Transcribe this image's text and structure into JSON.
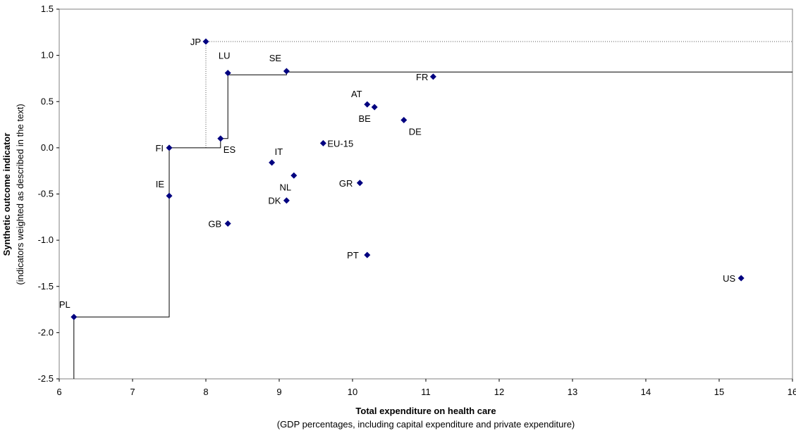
{
  "chart_data": {
    "type": "scatter",
    "xlabel": "Total expenditure on health care",
    "xlabel_sub": "(GDP percentages, including capital expenditure and private expenditure)",
    "ylabel": "Synthetic outcome indicator",
    "ylabel_sub": "(indicators weighted as described in the text)",
    "xlim": [
      6,
      16
    ],
    "ylim": [
      -2.5,
      1.5
    ],
    "x_ticks": [
      "6",
      "7",
      "8",
      "9",
      "10",
      "11",
      "12",
      "13",
      "14",
      "15",
      "16"
    ],
    "y_ticks": [
      "1.5",
      "1.0",
      "0.5",
      "0.0",
      "-0.5",
      "-1.0",
      "-1.5",
      "-2.0",
      "-2.5"
    ],
    "marker_color": "#000080",
    "points": [
      {
        "label": "PL",
        "x": 6.2,
        "y": -1.83
      },
      {
        "label": "IE",
        "x": 7.5,
        "y": -0.52
      },
      {
        "label": "FI",
        "x": 7.5,
        "y": 0.0
      },
      {
        "label": "JP",
        "x": 8.0,
        "y": 1.15
      },
      {
        "label": "ES",
        "x": 8.2,
        "y": 0.1
      },
      {
        "label": "LU",
        "x": 8.3,
        "y": 0.81
      },
      {
        "label": "GB",
        "x": 8.3,
        "y": -0.82
      },
      {
        "label": "IT",
        "x": 8.9,
        "y": -0.16
      },
      {
        "label": "SE",
        "x": 9.1,
        "y": 0.83
      },
      {
        "label": "DK",
        "x": 9.1,
        "y": -0.57
      },
      {
        "label": "NL",
        "x": 9.2,
        "y": -0.3
      },
      {
        "label": "EU-15",
        "x": 9.6,
        "y": 0.05
      },
      {
        "label": "GR",
        "x": 10.1,
        "y": -0.38
      },
      {
        "label": "AT",
        "x": 10.2,
        "y": 0.47
      },
      {
        "label": "PT",
        "x": 10.2,
        "y": -1.16
      },
      {
        "label": "BE",
        "x": 10.3,
        "y": 0.44
      },
      {
        "label": "DE",
        "x": 10.7,
        "y": 0.3
      },
      {
        "label": "FR",
        "x": 11.1,
        "y": 0.77
      },
      {
        "label": "US",
        "x": 15.3,
        "y": -1.41
      }
    ],
    "frontier": [
      [
        6.2,
        -2.5
      ],
      [
        6.2,
        -1.83
      ],
      [
        7.5,
        -1.83
      ],
      [
        7.5,
        0.0
      ],
      [
        8.2,
        0.0
      ],
      [
        8.2,
        0.1
      ],
      [
        8.3,
        0.1
      ],
      [
        8.3,
        0.79
      ],
      [
        9.1,
        0.79
      ],
      [
        9.1,
        0.82
      ],
      [
        16,
        0.82
      ]
    ],
    "frontier_dotted": [
      [
        8.0,
        0.0
      ],
      [
        8.0,
        1.15
      ],
      [
        16,
        1.15
      ]
    ]
  }
}
